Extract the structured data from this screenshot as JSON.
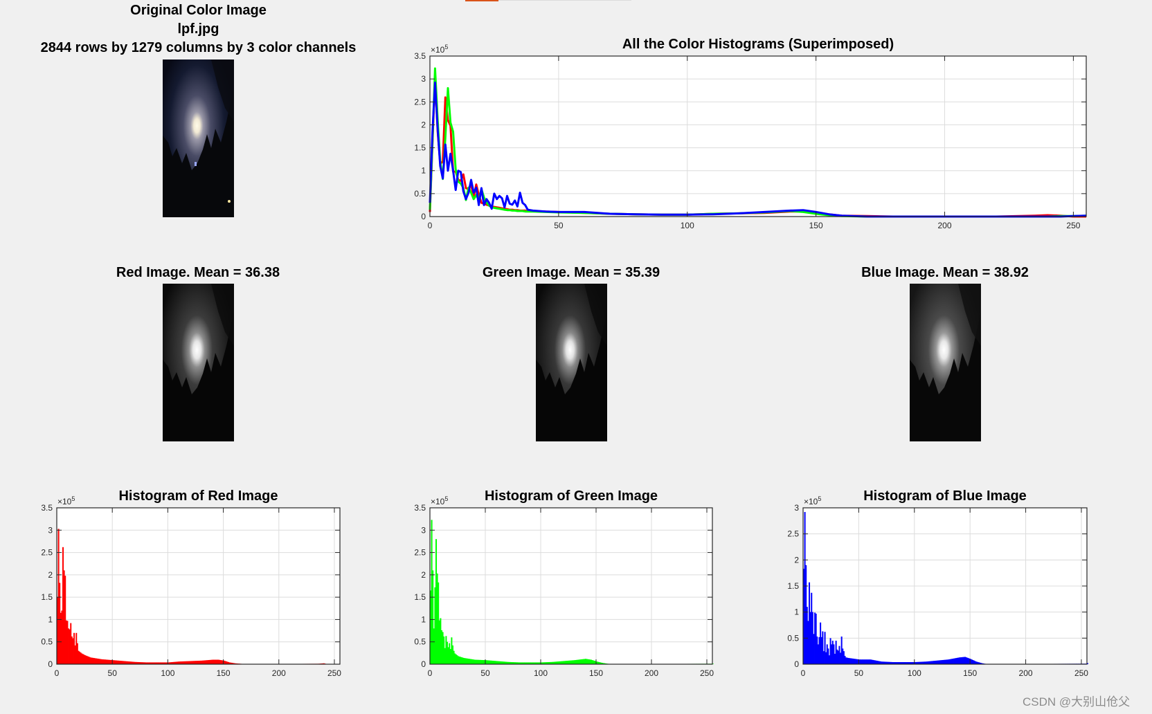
{
  "figure": {
    "background": "#f0f0f0",
    "watermark": "CSDN @大别山伧父"
  },
  "original": {
    "title_line1": "Original Color Image",
    "title_line2": "lpf.jpg",
    "title_line3": "2844 rows by 1279 columns by 3 color channels"
  },
  "channels": {
    "red": {
      "title": "Red Image.  Mean =  36.38",
      "mean": 36.38
    },
    "green": {
      "title": "Green Image.  Mean =  35.39",
      "mean": 35.39
    },
    "blue": {
      "title": "Blue Image.  Mean =  38.92",
      "mean": 38.92
    }
  },
  "chart_data": [
    {
      "id": "superimposed",
      "type": "line",
      "title": "All the Color Histograms (Superimposed)",
      "xlabel": "",
      "ylabel": "",
      "xlim": [
        0,
        255
      ],
      "ylim": [
        0,
        3.5
      ],
      "y_exponent": "×10^5",
      "xticks": [
        0,
        50,
        100,
        150,
        200,
        250
      ],
      "yticks": [
        0,
        0.5,
        1,
        1.5,
        2,
        2.5,
        3,
        3.5
      ],
      "grid": true,
      "legend": null,
      "x": [
        0,
        1,
        2,
        3,
        4,
        5,
        6,
        7,
        8,
        9,
        10,
        11,
        12,
        13,
        14,
        15,
        16,
        17,
        18,
        19,
        20,
        21,
        22,
        23,
        24,
        25,
        26,
        27,
        28,
        29,
        30,
        31,
        32,
        33,
        34,
        35,
        36,
        37,
        38,
        40,
        45,
        50,
        60,
        70,
        80,
        90,
        100,
        110,
        120,
        130,
        140,
        145,
        150,
        155,
        160,
        170,
        180,
        200,
        220,
        235,
        240,
        245,
        250,
        255
      ],
      "series": [
        {
          "name": "Red",
          "color": "#ff0000",
          "values": [
            0.1,
            1.6,
            3.05,
            1.85,
            1.15,
            1.2,
            2.6,
            2.1,
            1.98,
            0.98,
            0.98,
            0.8,
            0.78,
            0.92,
            0.62,
            0.6,
            0.7,
            0.42,
            0.7,
            0.47,
            0.3,
            0.28,
            0.26,
            0.24,
            0.22,
            0.21,
            0.2,
            0.19,
            0.18,
            0.17,
            0.16,
            0.15,
            0.15,
            0.14,
            0.14,
            0.13,
            0.13,
            0.13,
            0.12,
            0.12,
            0.11,
            0.1,
            0.08,
            0.06,
            0.05,
            0.04,
            0.04,
            0.06,
            0.07,
            0.08,
            0.11,
            0.11,
            0.09,
            0.05,
            0.02,
            0.01,
            0.0,
            0.0,
            0.0,
            0.02,
            0.03,
            0.02,
            0.0,
            0.0
          ]
        },
        {
          "name": "Green",
          "color": "#00ff00",
          "values": [
            0.15,
            1.65,
            3.23,
            2.1,
            1.2,
            0.82,
            1.72,
            2.8,
            2.05,
            1.85,
            1.03,
            0.76,
            0.72,
            0.62,
            0.36,
            0.63,
            0.52,
            0.38,
            0.47,
            0.36,
            0.6,
            0.42,
            0.3,
            0.24,
            0.2,
            0.19,
            0.18,
            0.17,
            0.16,
            0.15,
            0.14,
            0.14,
            0.13,
            0.13,
            0.12,
            0.12,
            0.12,
            0.11,
            0.11,
            0.11,
            0.1,
            0.09,
            0.08,
            0.06,
            0.05,
            0.04,
            0.04,
            0.06,
            0.07,
            0.09,
            0.12,
            0.1,
            0.06,
            0.03,
            0.01,
            0.0,
            0.0,
            0.0,
            0.0,
            0.0,
            0.0,
            0.01,
            0.01,
            0.02
          ]
        },
        {
          "name": "Blue",
          "color": "#0000ff",
          "values": [
            0.3,
            1.85,
            2.92,
            1.9,
            1.1,
            0.83,
            1.57,
            1.0,
            1.37,
            1.0,
            0.58,
            1.0,
            0.97,
            0.55,
            0.38,
            0.52,
            0.8,
            0.52,
            0.63,
            0.25,
            0.62,
            0.25,
            0.38,
            0.3,
            0.17,
            0.5,
            0.38,
            0.45,
            0.4,
            0.2,
            0.45,
            0.28,
            0.26,
            0.35,
            0.22,
            0.52,
            0.3,
            0.25,
            0.15,
            0.13,
            0.11,
            0.1,
            0.1,
            0.06,
            0.05,
            0.04,
            0.04,
            0.05,
            0.07,
            0.1,
            0.13,
            0.14,
            0.1,
            0.05,
            0.02,
            0.0,
            0.0,
            0.0,
            0.0,
            0.0,
            0.0,
            0.0,
            0.01,
            0.02
          ]
        }
      ]
    },
    {
      "id": "red_hist",
      "type": "bar",
      "title": "Histogram of Red Image",
      "color": "#ff0000",
      "xlim": [
        0,
        255
      ],
      "ylim": [
        0,
        3.5
      ],
      "y_exponent": "×10^5",
      "xticks": [
        0,
        50,
        100,
        150,
        200,
        250
      ],
      "yticks": [
        0,
        0.5,
        1,
        1.5,
        2,
        2.5,
        3,
        3.5
      ],
      "grid": true,
      "x": [
        0,
        1,
        2,
        3,
        4,
        5,
        6,
        7,
        8,
        9,
        10,
        11,
        12,
        13,
        14,
        15,
        16,
        17,
        18,
        19,
        20,
        22,
        25,
        30,
        40,
        50,
        60,
        70,
        80,
        90,
        100,
        110,
        120,
        130,
        140,
        145,
        150,
        155,
        160,
        165,
        170,
        235,
        240,
        243
      ],
      "values": [
        1.5,
        3.03,
        1.82,
        1.15,
        1.2,
        2.62,
        2.1,
        1.98,
        0.98,
        0.97,
        0.8,
        0.78,
        0.92,
        0.62,
        0.58,
        0.7,
        0.42,
        0.7,
        0.47,
        0.3,
        0.28,
        0.24,
        0.2,
        0.15,
        0.11,
        0.09,
        0.07,
        0.05,
        0.04,
        0.04,
        0.04,
        0.06,
        0.07,
        0.08,
        0.1,
        0.1,
        0.08,
        0.04,
        0.02,
        0.01,
        0.0,
        0.01,
        0.02,
        0.0
      ]
    },
    {
      "id": "green_hist",
      "type": "bar",
      "title": "Histogram of Green Image",
      "color": "#00ff00",
      "xlim": [
        0,
        255
      ],
      "ylim": [
        0,
        3.5
      ],
      "y_exponent": "×10^5",
      "xticks": [
        0,
        50,
        100,
        150,
        200,
        250
      ],
      "yticks": [
        0,
        0.5,
        1,
        1.5,
        2,
        2.5,
        3,
        3.5
      ],
      "grid": true,
      "x": [
        0,
        1,
        2,
        3,
        4,
        5,
        6,
        7,
        8,
        9,
        10,
        11,
        12,
        13,
        14,
        15,
        16,
        17,
        18,
        19,
        20,
        21,
        22,
        25,
        30,
        40,
        50,
        60,
        70,
        80,
        90,
        100,
        110,
        120,
        130,
        140,
        145,
        150,
        155,
        160,
        165,
        250
      ],
      "values": [
        1.65,
        3.23,
        2.1,
        0.8,
        1.72,
        2.8,
        2.03,
        1.83,
        0.98,
        1.03,
        0.76,
        0.72,
        0.62,
        0.36,
        0.63,
        0.5,
        0.38,
        0.47,
        0.34,
        0.6,
        0.42,
        0.3,
        0.24,
        0.18,
        0.14,
        0.1,
        0.09,
        0.07,
        0.05,
        0.04,
        0.04,
        0.04,
        0.05,
        0.07,
        0.09,
        0.12,
        0.1,
        0.06,
        0.03,
        0.01,
        0.0,
        0.01
      ]
    },
    {
      "id": "blue_hist",
      "type": "bar",
      "title": "Histogram of Blue Image",
      "color": "#0000ff",
      "xlim": [
        0,
        255
      ],
      "ylim": [
        0,
        3
      ],
      "y_exponent": "×10^5",
      "xticks": [
        0,
        50,
        100,
        150,
        200,
        250
      ],
      "yticks": [
        0,
        0.5,
        1,
        1.5,
        2,
        2.5,
        3
      ],
      "grid": true,
      "x": [
        0,
        1,
        2,
        3,
        4,
        5,
        6,
        7,
        8,
        9,
        10,
        11,
        12,
        13,
        14,
        15,
        16,
        17,
        18,
        19,
        20,
        21,
        22,
        23,
        24,
        25,
        26,
        27,
        28,
        29,
        30,
        31,
        32,
        33,
        34,
        35,
        36,
        37,
        38,
        40,
        50,
        60,
        70,
        80,
        90,
        100,
        110,
        120,
        130,
        140,
        145,
        150,
        155,
        160,
        165,
        254,
        255
      ],
      "values": [
        1.83,
        2.92,
        1.9,
        1.1,
        0.83,
        1.57,
        1.0,
        1.37,
        1.0,
        0.58,
        0.99,
        0.97,
        0.53,
        0.38,
        0.52,
        0.8,
        0.52,
        0.63,
        0.25,
        0.62,
        0.23,
        0.38,
        0.3,
        0.17,
        0.5,
        0.38,
        0.45,
        0.38,
        0.2,
        0.45,
        0.28,
        0.26,
        0.35,
        0.22,
        0.53,
        0.3,
        0.25,
        0.16,
        0.13,
        0.12,
        0.09,
        0.09,
        0.05,
        0.04,
        0.04,
        0.04,
        0.05,
        0.07,
        0.09,
        0.13,
        0.14,
        0.1,
        0.05,
        0.02,
        0.0,
        0.01,
        0.02
      ]
    }
  ]
}
